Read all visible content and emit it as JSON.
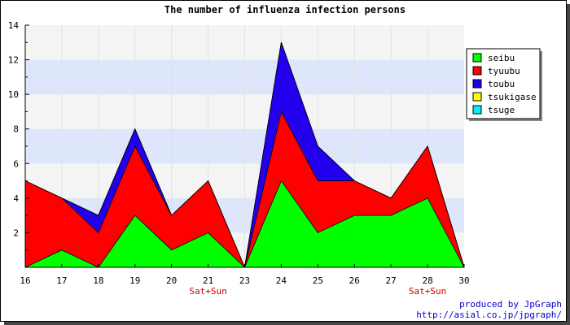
{
  "chart_data": {
    "type": "area",
    "stacked": true,
    "title": "The number of influenza infection persons",
    "x": [
      "16",
      "17",
      "18",
      "19",
      "20",
      "21",
      "23",
      "24",
      "25",
      "26",
      "27",
      "28",
      "30"
    ],
    "x_sublabels": [
      "",
      "",
      "",
      "",
      "",
      "Sat+Sun",
      "",
      "",
      "",
      "",
      "",
      "Sat+Sun",
      ""
    ],
    "ylim": [
      0,
      14
    ],
    "y_ticks": [
      2,
      4,
      6,
      8,
      10,
      12,
      14
    ],
    "series": [
      {
        "name": "seibu",
        "color": "#00ff00",
        "values": [
          0,
          1,
          0,
          3,
          1,
          2,
          0,
          5,
          2,
          3,
          3,
          4,
          0
        ]
      },
      {
        "name": "tyuubu",
        "color": "#ff0000",
        "values": [
          5,
          3,
          2,
          4,
          2,
          3,
          0,
          4,
          3,
          2,
          1,
          3,
          0
        ]
      },
      {
        "name": "toubu",
        "color": "#2200ee",
        "values": [
          0,
          0,
          1,
          1,
          0,
          0,
          0,
          4,
          2,
          0,
          0,
          0,
          0
        ]
      },
      {
        "name": "tsukigase",
        "color": "#ffff00",
        "values": [
          0,
          0,
          0,
          0,
          0,
          0,
          0,
          0,
          0,
          0,
          0,
          0,
          0
        ]
      },
      {
        "name": "tsuge",
        "color": "#00eeff",
        "values": [
          0,
          0,
          0,
          0,
          0,
          0,
          0,
          0,
          0,
          0,
          0,
          0,
          0
        ]
      }
    ],
    "legend_position": "right",
    "grid": true,
    "band_colors": [
      "#f4f4f4",
      "#dde6fa"
    ]
  },
  "credit": {
    "line1": "produced by JpGraph",
    "line2": "http://asial.co.jp/jpgraph/"
  }
}
